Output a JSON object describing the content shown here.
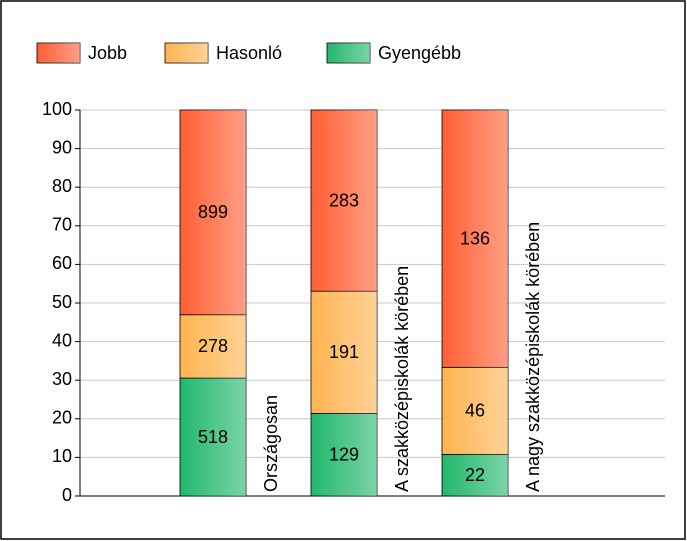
{
  "chart_data": {
    "type": "bar",
    "stacking": "percent",
    "categories": [
      "Országosan",
      "A szakközépiskolák körében",
      "A nagy szakközépiskolák körében"
    ],
    "series": [
      {
        "name": "Gyengébb",
        "color": "#22b86c",
        "values": [
          518,
          129,
          22
        ]
      },
      {
        "name": "Hasonló",
        "color": "#ffb450",
        "values": [
          278,
          191,
          46
        ]
      },
      {
        "name": "Jobb",
        "color": "#ff5f33",
        "values": [
          899,
          283,
          136
        ]
      }
    ],
    "legend_order": [
      2,
      1,
      0
    ],
    "ylim": [
      0,
      100
    ],
    "yticks": [
      0,
      10,
      20,
      30,
      40,
      50,
      60,
      70,
      80,
      90,
      100
    ],
    "grid": true
  }
}
